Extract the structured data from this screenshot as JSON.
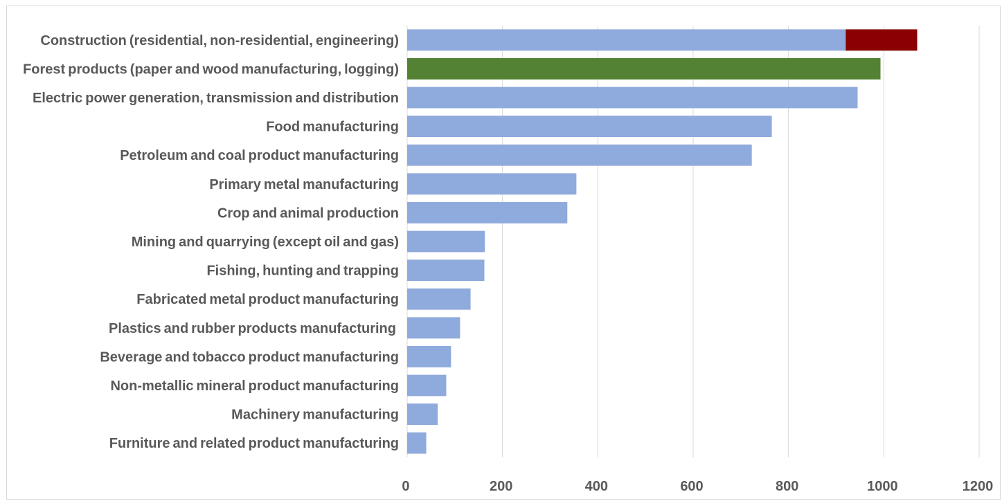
{
  "chart_data": {
    "type": "bar",
    "orientation": "horizontal",
    "stacked": true,
    "categories": [
      "Construction (residential, non-residential, engineering) ",
      "Forest products (paper and wood manufacturing, logging) ",
      "Electric power generation, transmission and distribution ",
      "Food manufacturing ",
      "Petroleum and coal product manufacturing ",
      "Primary metal manufacturing ",
      "Crop and animal production ",
      "Mining and quarrying (except oil and gas) ",
      "Fishing, hunting and trapping ",
      "Fabricated metal product manufacturing ",
      "Plastics and rubber products manufacturing  ",
      "Beverage and tobacco product manufacturing ",
      "Non-metallic mineral product manufacturing ",
      "Machinery manufacturing ",
      "Furniture and related product manufacturing "
    ],
    "series": [
      {
        "values": [
          920,
          993,
          945,
          765,
          723,
          355,
          336,
          163,
          162,
          133,
          111,
          92,
          82,
          64,
          40
        ],
        "colors": [
          "#8faadc",
          "#548235",
          "#8faadc",
          "#8faadc",
          "#8faadc",
          "#8faadc",
          "#8faadc",
          "#8faadc",
          "#8faadc",
          "#8faadc",
          "#8faadc",
          "#8faadc",
          "#8faadc",
          "#8faadc",
          "#8faadc"
        ]
      },
      {
        "values": [
          150,
          0,
          0,
          0,
          0,
          0,
          0,
          0,
          0,
          0,
          0,
          0,
          0,
          0,
          0
        ],
        "colors": [
          "#8b0000",
          "#8b0000",
          "#8b0000",
          "#8b0000",
          "#8b0000",
          "#8b0000",
          "#8b0000",
          "#8b0000",
          "#8b0000",
          "#8b0000",
          "#8b0000",
          "#8b0000",
          "#8b0000",
          "#8b0000",
          "#8b0000"
        ]
      }
    ],
    "xticks": [
      0,
      200,
      400,
      600,
      800,
      1000,
      1200
    ],
    "xtick_labels": [
      "0 ",
      "200 ",
      "400 ",
      "600 ",
      "800 ",
      "1000 ",
      "1200 "
    ],
    "xlim": [
      0,
      1200
    ],
    "grid": "vertical",
    "legend": "none",
    "title": "",
    "xlabel": "",
    "ylabel": ""
  }
}
